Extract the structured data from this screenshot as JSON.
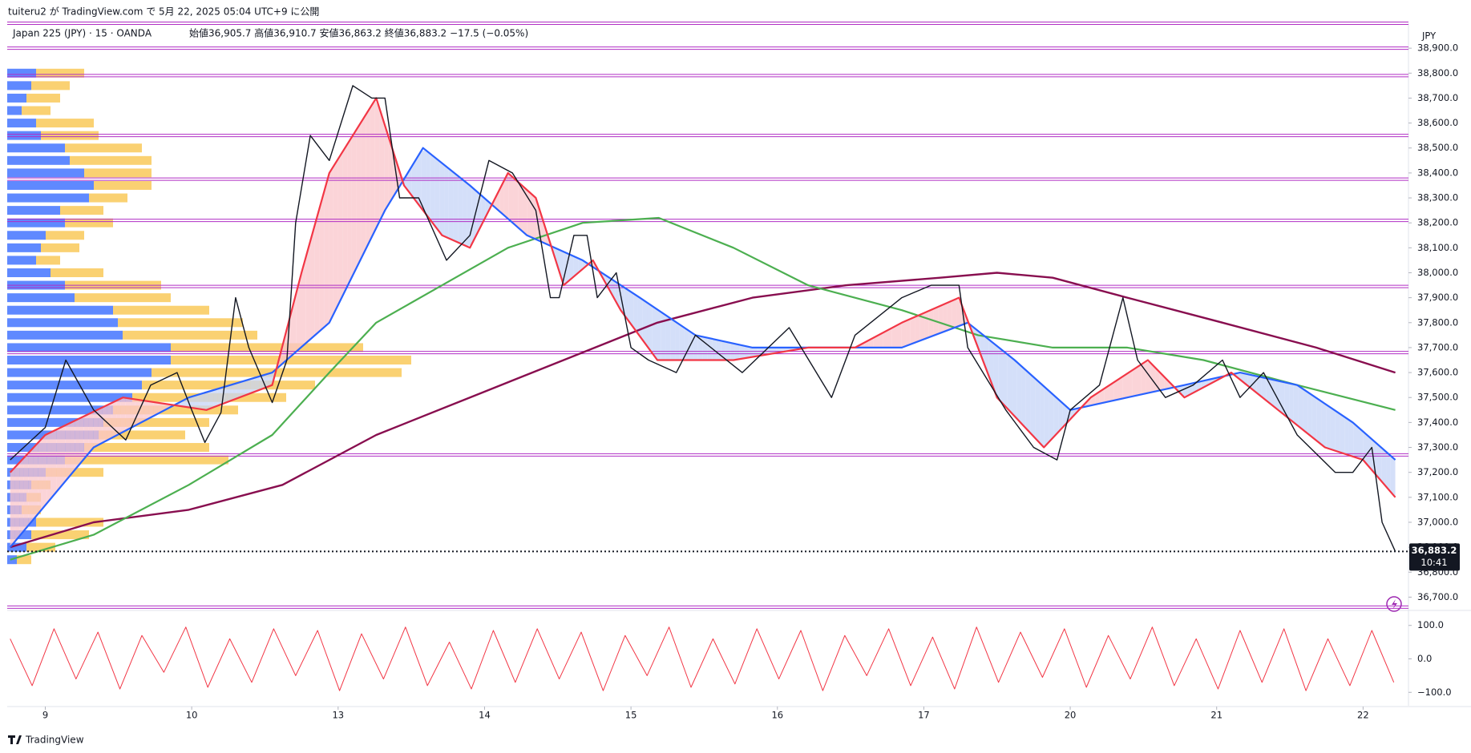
{
  "header": {
    "published": "tuiteru2 が TradingView.com で 5月 22, 2025 05:04 UTC+9 に公開",
    "symbol": "Japan 225 (JPY) · 15 · OANDA",
    "ohlc": "始値36,905.7 高値36,910.7 安値36,863.2 終値36,883.2 −17.5 (−0.05%)",
    "brand": "TradingView"
  },
  "chart_data": [
    {
      "type": "line",
      "currency": "JPY",
      "xlim": [
        -0.26,
        9.31
      ],
      "xticks": [
        {
          "value": 0,
          "label": "9"
        },
        {
          "value": 1,
          "label": "10"
        },
        {
          "value": 2,
          "label": "13"
        },
        {
          "value": 3,
          "label": "14"
        },
        {
          "value": 4,
          "label": "15"
        },
        {
          "value": 5,
          "label": "16"
        },
        {
          "value": 6,
          "label": "17"
        },
        {
          "value": 7,
          "label": "20"
        },
        {
          "value": 8,
          "label": "21"
        },
        {
          "value": 9,
          "label": "22"
        }
      ],
      "ylim": [
        36650,
        39000
      ],
      "yticks": [
        {
          "value": 36700,
          "label": "36,700.0"
        },
        {
          "value": 36800,
          "label": "36,800.0"
        },
        {
          "value": 36900,
          "label": "36,900.0"
        },
        {
          "value": 37000,
          "label": "37,000.0"
        },
        {
          "value": 37100,
          "label": "37,100.0"
        },
        {
          "value": 37200,
          "label": "37,200.0"
        },
        {
          "value": 37300,
          "label": "37,300.0"
        },
        {
          "value": 37400,
          "label": "37,400.0"
        },
        {
          "value": 37500,
          "label": "37,500.0"
        },
        {
          "value": 37600,
          "label": "37,600.0"
        },
        {
          "value": 37700,
          "label": "37,700.0"
        },
        {
          "value": 37800,
          "label": "37,800.0"
        },
        {
          "value": 37900,
          "label": "37,900.0"
        },
        {
          "value": 38000,
          "label": "38,000.0"
        },
        {
          "value": 38100,
          "label": "38,100.0"
        },
        {
          "value": 38200,
          "label": "38,200.0"
        },
        {
          "value": 38300,
          "label": "38,300.0"
        },
        {
          "value": 38400,
          "label": "38,400.0"
        },
        {
          "value": 38500,
          "label": "38,500.0"
        },
        {
          "value": 38600,
          "label": "38,600.0"
        },
        {
          "value": 38700,
          "label": "38,700.0"
        },
        {
          "value": 38800,
          "label": "38,800.0"
        },
        {
          "value": 38900,
          "label": "38,900.0"
        }
      ],
      "series": [
        {
          "color": "#131722",
          "width": 1.4,
          "x": [
            -0.24,
            0,
            0.14,
            0.33,
            0.55,
            0.72,
            0.9,
            1.0,
            1.09,
            1.2,
            1.3,
            1.39,
            1.55,
            1.65,
            1.71,
            1.81,
            1.94,
            2.1,
            2.23,
            2.32,
            2.42,
            2.55,
            2.74,
            2.9,
            3.03,
            3.19,
            3.35,
            3.45,
            3.51,
            3.61,
            3.7,
            3.77,
            3.9,
            4.0,
            4.12,
            4.31,
            4.44,
            4.76,
            5.08,
            5.37,
            5.53,
            5.85,
            6.05,
            6.24,
            6.3,
            6.56,
            6.75,
            6.91,
            7.0,
            7.2,
            7.36,
            7.46,
            7.65,
            7.84,
            8.04,
            8.16,
            8.32,
            8.55,
            8.81,
            8.93,
            9.06,
            9.13,
            9.22
          ],
          "values": [
            37250,
            37380,
            37650,
            37450,
            37330,
            37550,
            37600,
            37450,
            37320,
            37440,
            37900,
            37700,
            37480,
            37650,
            38200,
            38550,
            38450,
            38750,
            38700,
            38700,
            38300,
            38300,
            38050,
            38150,
            38450,
            38400,
            38250,
            37900,
            37900,
            38150,
            38150,
            37900,
            38000,
            37700,
            37650,
            37600,
            37750,
            37600,
            37780,
            37500,
            37750,
            37900,
            37950,
            37950,
            37700,
            37450,
            37300,
            37250,
            37450,
            37550,
            37900,
            37650,
            37500,
            37550,
            37650,
            37500,
            37600,
            37350,
            37200,
            37200,
            37300,
            37000,
            36883.2
          ]
        },
        {
          "color": "#f23645",
          "width": 2.2,
          "x": [
            -0.24,
            0,
            0.53,
            1.1,
            1.55,
            1.75,
            1.94,
            2.26,
            2.45,
            2.71,
            2.9,
            3.16,
            3.35,
            3.54,
            3.74,
            3.93,
            4.18,
            4.7,
            5.21,
            5.53,
            5.85,
            6.24,
            6.5,
            6.82,
            7.14,
            7.53,
            7.78,
            8.1,
            8.42,
            8.74,
            9.0,
            9.22
          ],
          "values": [
            37200,
            37350,
            37500,
            37450,
            37550,
            38000,
            38400,
            38700,
            38350,
            38150,
            38100,
            38400,
            38300,
            37950,
            38050,
            37850,
            37650,
            37650,
            37700,
            37700,
            37800,
            37900,
            37500,
            37300,
            37500,
            37650,
            37500,
            37600,
            37450,
            37300,
            37250,
            37100
          ]
        },
        {
          "color": "#2962ff",
          "width": 2.2,
          "x": [
            -0.24,
            0.33,
            0.98,
            1.55,
            1.94,
            2.32,
            2.58,
            2.9,
            3.29,
            3.67,
            4.06,
            4.44,
            4.83,
            5.34,
            5.85,
            6.3,
            6.62,
            7.0,
            7.39,
            7.78,
            8.16,
            8.55,
            8.93,
            9.22
          ],
          "values": [
            36900,
            37300,
            37500,
            37600,
            37800,
            38250,
            38500,
            38350,
            38150,
            38050,
            37900,
            37750,
            37700,
            37700,
            37700,
            37800,
            37650,
            37450,
            37500,
            37550,
            37600,
            37550,
            37400,
            37250
          ]
        },
        {
          "color": "#4caf50",
          "width": 2.2,
          "x": [
            -0.24,
            0.33,
            0.98,
            1.55,
            1.94,
            2.26,
            2.71,
            3.16,
            3.67,
            4.19,
            4.7,
            5.21,
            5.85,
            6.37,
            6.88,
            7.39,
            7.91,
            8.55,
            9.22
          ],
          "values": [
            36850,
            36950,
            37150,
            37350,
            37600,
            37800,
            37950,
            38100,
            38200,
            38220,
            38100,
            37950,
            37850,
            37750,
            37700,
            37700,
            37650,
            37550,
            37450
          ]
        },
        {
          "color": "#880e4f",
          "width": 2.4,
          "x": [
            -0.24,
            0.33,
            0.98,
            1.62,
            2.26,
            2.9,
            3.54,
            4.18,
            4.83,
            5.47,
            6.11,
            6.5,
            6.88,
            7.39,
            8.04,
            8.68,
            9.22
          ],
          "values": [
            36900,
            37000,
            37050,
            37150,
            37350,
            37500,
            37650,
            37800,
            37900,
            37950,
            37980,
            38000,
            37980,
            37900,
            37800,
            37700,
            37600
          ]
        }
      ],
      "cloud": {
        "series": [
          1,
          2
        ],
        "colors": [
          "#f9c6cb",
          "#c5d4f7"
        ]
      },
      "levels": {
        "color": "#b02ec4",
        "values": [
          39000,
          38900,
          38790,
          38550,
          38375,
          38210,
          37945,
          37680,
          37270,
          36660
        ]
      },
      "last_price": {
        "value": 36883.2,
        "label": "36,883.2"
      },
      "countdown": "10:41",
      "volume_profile": {
        "colors": [
          "#2962ff",
          "#f9c64f"
        ],
        "prices": [
          38800,
          38750,
          38700,
          38650,
          38600,
          38550,
          38500,
          38450,
          38400,
          38350,
          38300,
          38250,
          38200,
          38150,
          38100,
          38050,
          38000,
          37950,
          37900,
          37850,
          37800,
          37750,
          37700,
          37650,
          37600,
          37550,
          37500,
          37450,
          37400,
          37350,
          37300,
          37250,
          37200,
          37150,
          37100,
          37050,
          37000,
          36950,
          36900,
          36850
        ],
        "up": [
          30,
          25,
          20,
          15,
          30,
          35,
          60,
          65,
          80,
          90,
          85,
          55,
          60,
          40,
          35,
          30,
          45,
          60,
          70,
          110,
          115,
          120,
          170,
          170,
          150,
          140,
          130,
          110,
          100,
          95,
          80,
          60,
          40,
          25,
          20,
          15,
          30,
          25,
          20,
          10
        ],
        "down": [
          50,
          40,
          35,
          30,
          60,
          60,
          80,
          85,
          70,
          60,
          40,
          45,
          50,
          40,
          40,
          25,
          55,
          100,
          100,
          100,
          130,
          140,
          200,
          250,
          260,
          180,
          160,
          130,
          110,
          90,
          130,
          170,
          60,
          20,
          15,
          20,
          70,
          60,
          30,
          15
        ]
      }
    },
    {
      "type": "line",
      "ylim": [
        -140,
        140
      ],
      "yticks": [
        {
          "value": 100,
          "label": "100.0"
        },
        {
          "value": 0,
          "label": "0.0"
        },
        {
          "value": -100,
          "label": "−100.0"
        }
      ],
      "series": [
        {
          "color": "#f23645",
          "width": 1,
          "x": [
            -0.24,
            -0.09,
            0.06,
            0.21,
            0.36,
            0.51,
            0.66,
            0.81,
            0.96,
            1.11,
            1.26,
            1.41,
            1.56,
            1.71,
            1.86,
            2.01,
            2.16,
            2.31,
            2.46,
            2.61,
            2.76,
            2.91,
            3.06,
            3.21,
            3.36,
            3.51,
            3.66,
            3.81,
            3.96,
            4.11,
            4.26,
            4.41,
            4.56,
            4.71,
            4.86,
            5.01,
            5.16,
            5.31,
            5.46,
            5.61,
            5.76,
            5.91,
            6.06,
            6.21,
            6.36,
            6.51,
            6.66,
            6.81,
            6.96,
            7.11,
            7.26,
            7.41,
            7.56,
            7.71,
            7.86,
            8.01,
            8.16,
            8.31,
            8.46,
            8.61,
            8.76,
            8.91,
            9.06,
            9.21
          ],
          "values": [
            60,
            -80,
            90,
            -60,
            80,
            -90,
            70,
            -40,
            95,
            -85,
            60,
            -70,
            90,
            -50,
            85,
            -95,
            75,
            -60,
            95,
            -80,
            50,
            -90,
            85,
            -70,
            90,
            -60,
            80,
            -95,
            70,
            -50,
            95,
            -85,
            60,
            -75,
            90,
            -60,
            85,
            -95,
            70,
            -50,
            90,
            -80,
            65,
            -90,
            95,
            -70,
            80,
            -55,
            90,
            -85,
            70,
            -60,
            95,
            -80,
            60,
            -90,
            85,
            -70,
            90,
            -95,
            60,
            -80,
            85,
            -70
          ]
        }
      ]
    }
  ]
}
